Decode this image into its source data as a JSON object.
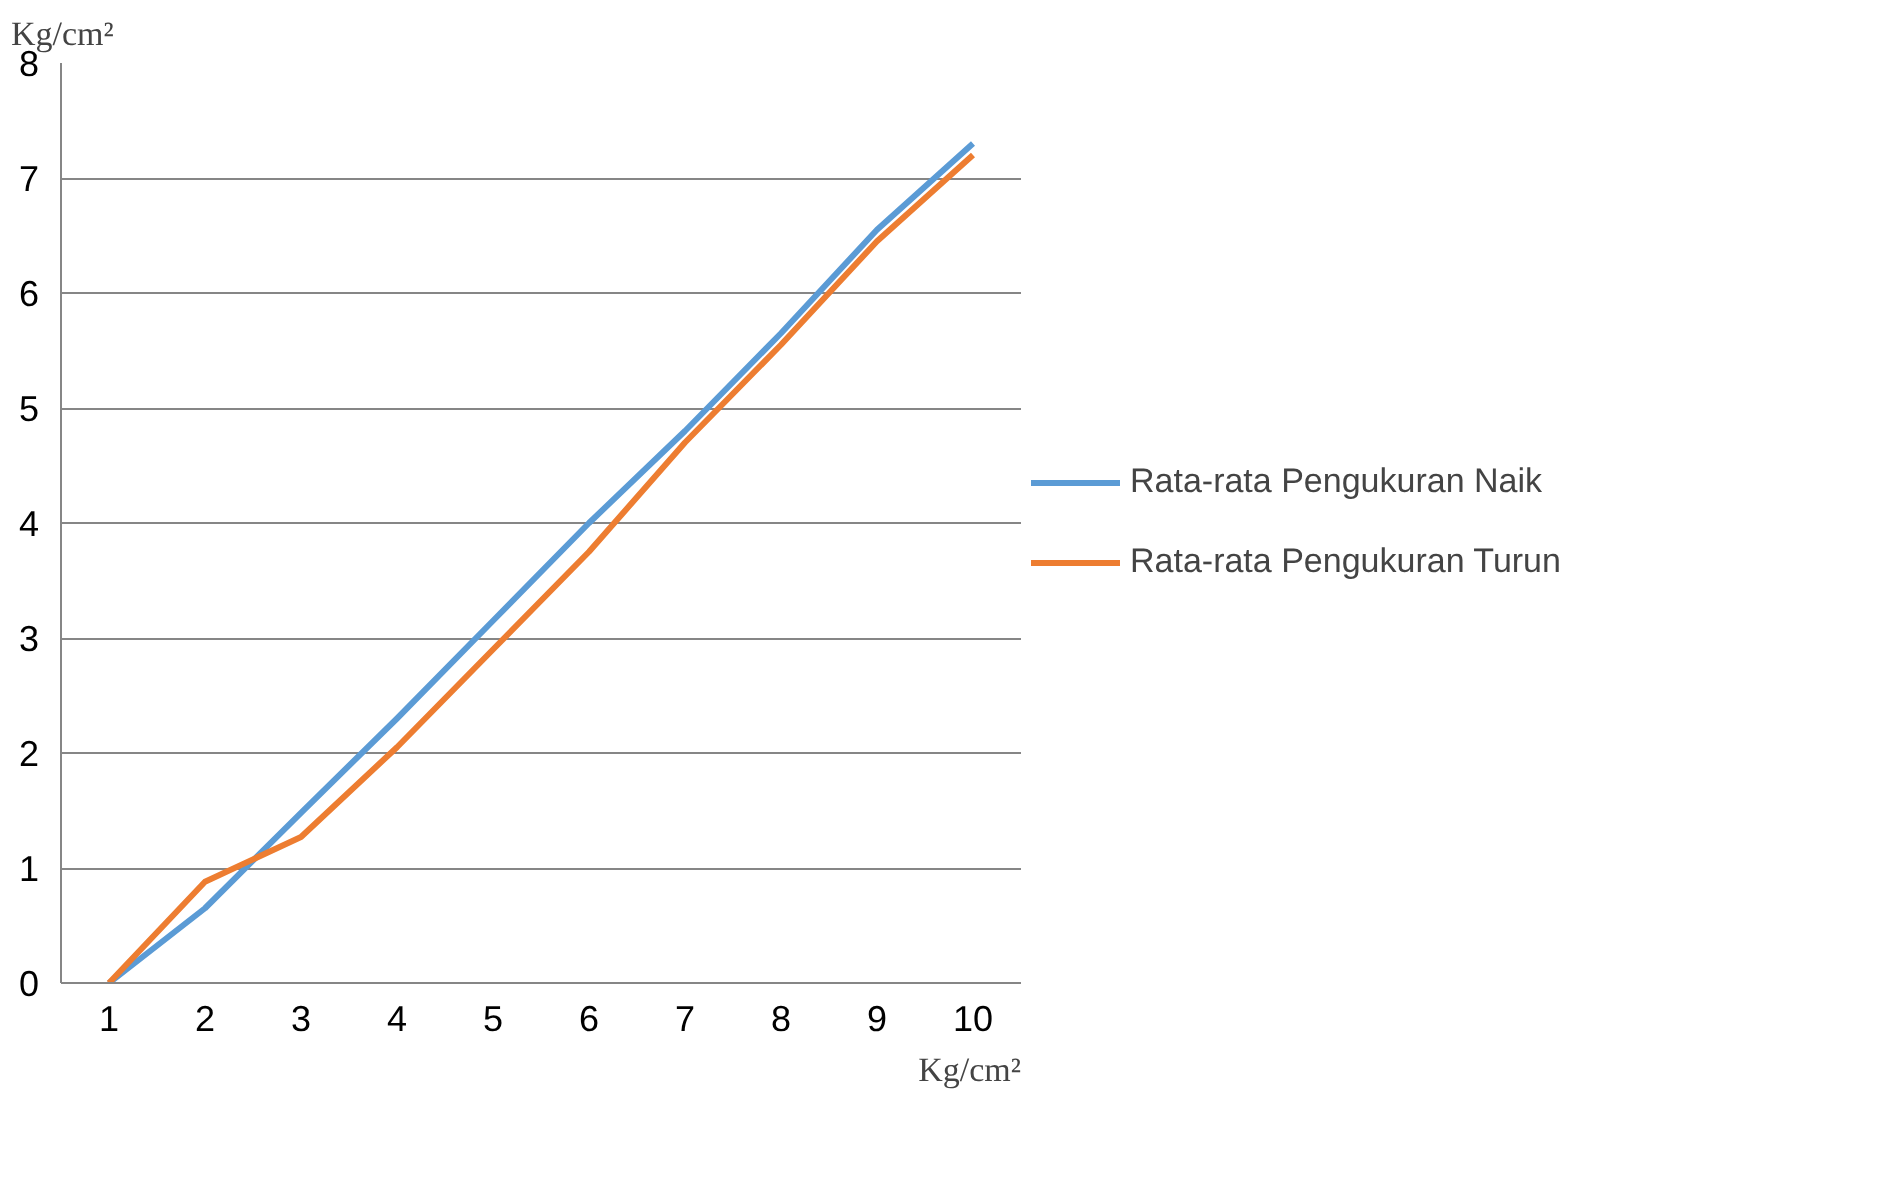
{
  "chart_data": {
    "type": "line",
    "xlabel": "Kg/cm²",
    "ylabel": "Kg/cm²",
    "categories": [
      "1",
      "2",
      "3",
      "4",
      "5",
      "6",
      "7",
      "8",
      "9",
      "10"
    ],
    "series": [
      {
        "name": "Rata-rata Pengukuran Naik",
        "color": "#5b9bd5",
        "values": [
          0,
          0.65,
          1.48,
          2.3,
          3.15,
          4.0,
          4.8,
          5.65,
          6.55,
          7.3
        ]
      },
      {
        "name": "Rata-rata Pengukuran Turun",
        "color": "#ed7d31",
        "values": [
          0,
          0.88,
          1.27,
          2.05,
          2.9,
          3.75,
          4.7,
          5.55,
          6.45,
          7.2
        ]
      }
    ],
    "ylim": [
      0,
      8
    ],
    "yticks": [
      0,
      1,
      2,
      3,
      4,
      5,
      6,
      7,
      8
    ],
    "grid": "y",
    "legend": "right",
    "marker": "none",
    "line_style": "solid"
  }
}
